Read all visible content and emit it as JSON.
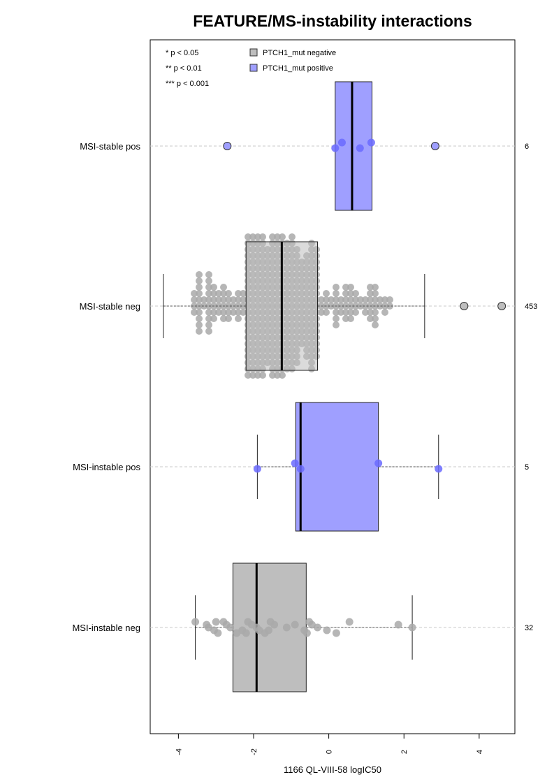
{
  "chart_data": {
    "type": "boxplot",
    "title": "FEATURE/MS-instability interactions",
    "xlabel": "1166 QL-VIII-58 logIC50",
    "ylabel": "",
    "xlim": [
      -4.75,
      4.95
    ],
    "x_ticks": [
      -4,
      -2,
      0,
      2,
      4
    ],
    "x_tick_labels": [
      "-4",
      "-2",
      "0",
      "2",
      "4"
    ],
    "orientation": "horizontal",
    "grid": "dashed horizontal guide per group",
    "significance_legend": [
      "* p < 0.05",
      "** p < 0.01",
      "*** p < 0.001"
    ],
    "legend": {
      "placement": "top-left",
      "entries": [
        {
          "label": "PTCH1_mut negative",
          "color": "#bebebe"
        },
        {
          "label": "PTCH1_mut positive",
          "color": "#9f9fff"
        }
      ]
    },
    "colors": {
      "negative_box": "#bebebe",
      "positive_box": "#9f9fff",
      "negative_point": "#a9a9a9",
      "positive_point": "#6a6aff",
      "guide": "#c8c8c8"
    },
    "groups": [
      {
        "label": "MSI-stable pos",
        "n": "6",
        "mutation": "positive",
        "q1": 0.17,
        "median": 0.62,
        "q3": 1.15,
        "whisker_low": 0.17,
        "whisker_high": 1.15,
        "points": [
          0.17,
          0.35,
          0.83,
          1.13
        ],
        "outliers": [
          -2.7,
          2.83
        ]
      },
      {
        "label": "MSI-stable neg",
        "n": "453",
        "mutation": "negative",
        "q1": -2.2,
        "median": -1.25,
        "q3": -0.3,
        "whisker_low": -4.4,
        "whisker_high": 2.55,
        "points": [],
        "outliers": [
          3.6,
          4.6
        ]
      },
      {
        "label": "MSI-instable pos",
        "n": "5",
        "mutation": "positive",
        "q1": -0.88,
        "median": -0.75,
        "q3": 1.32,
        "whisker_low": -1.9,
        "whisker_high": 2.92,
        "points": [
          -1.9,
          -0.9,
          -0.75,
          1.32,
          2.92
        ],
        "outliers": []
      },
      {
        "label": "MSI-instable neg",
        "n": "32",
        "mutation": "negative",
        "q1": -2.55,
        "median": -1.92,
        "q3": -0.6,
        "whisker_low": -3.55,
        "whisker_high": 2.22,
        "points": [
          -3.55,
          -3.25,
          -3.2,
          -3.05,
          -2.95,
          -2.8,
          -2.72,
          -2.62,
          -2.3,
          -2.2,
          -2.15,
          -2.05,
          -1.92,
          -1.85,
          -1.7,
          -1.55,
          -1.45,
          -1.12,
          -0.65,
          -0.58,
          -0.52,
          -0.45,
          -0.3,
          -0.05,
          0.2,
          0.55,
          1.85,
          2.22,
          -1.6,
          -2.45,
          -3.0,
          -0.9
        ],
        "outliers": []
      }
    ]
  }
}
